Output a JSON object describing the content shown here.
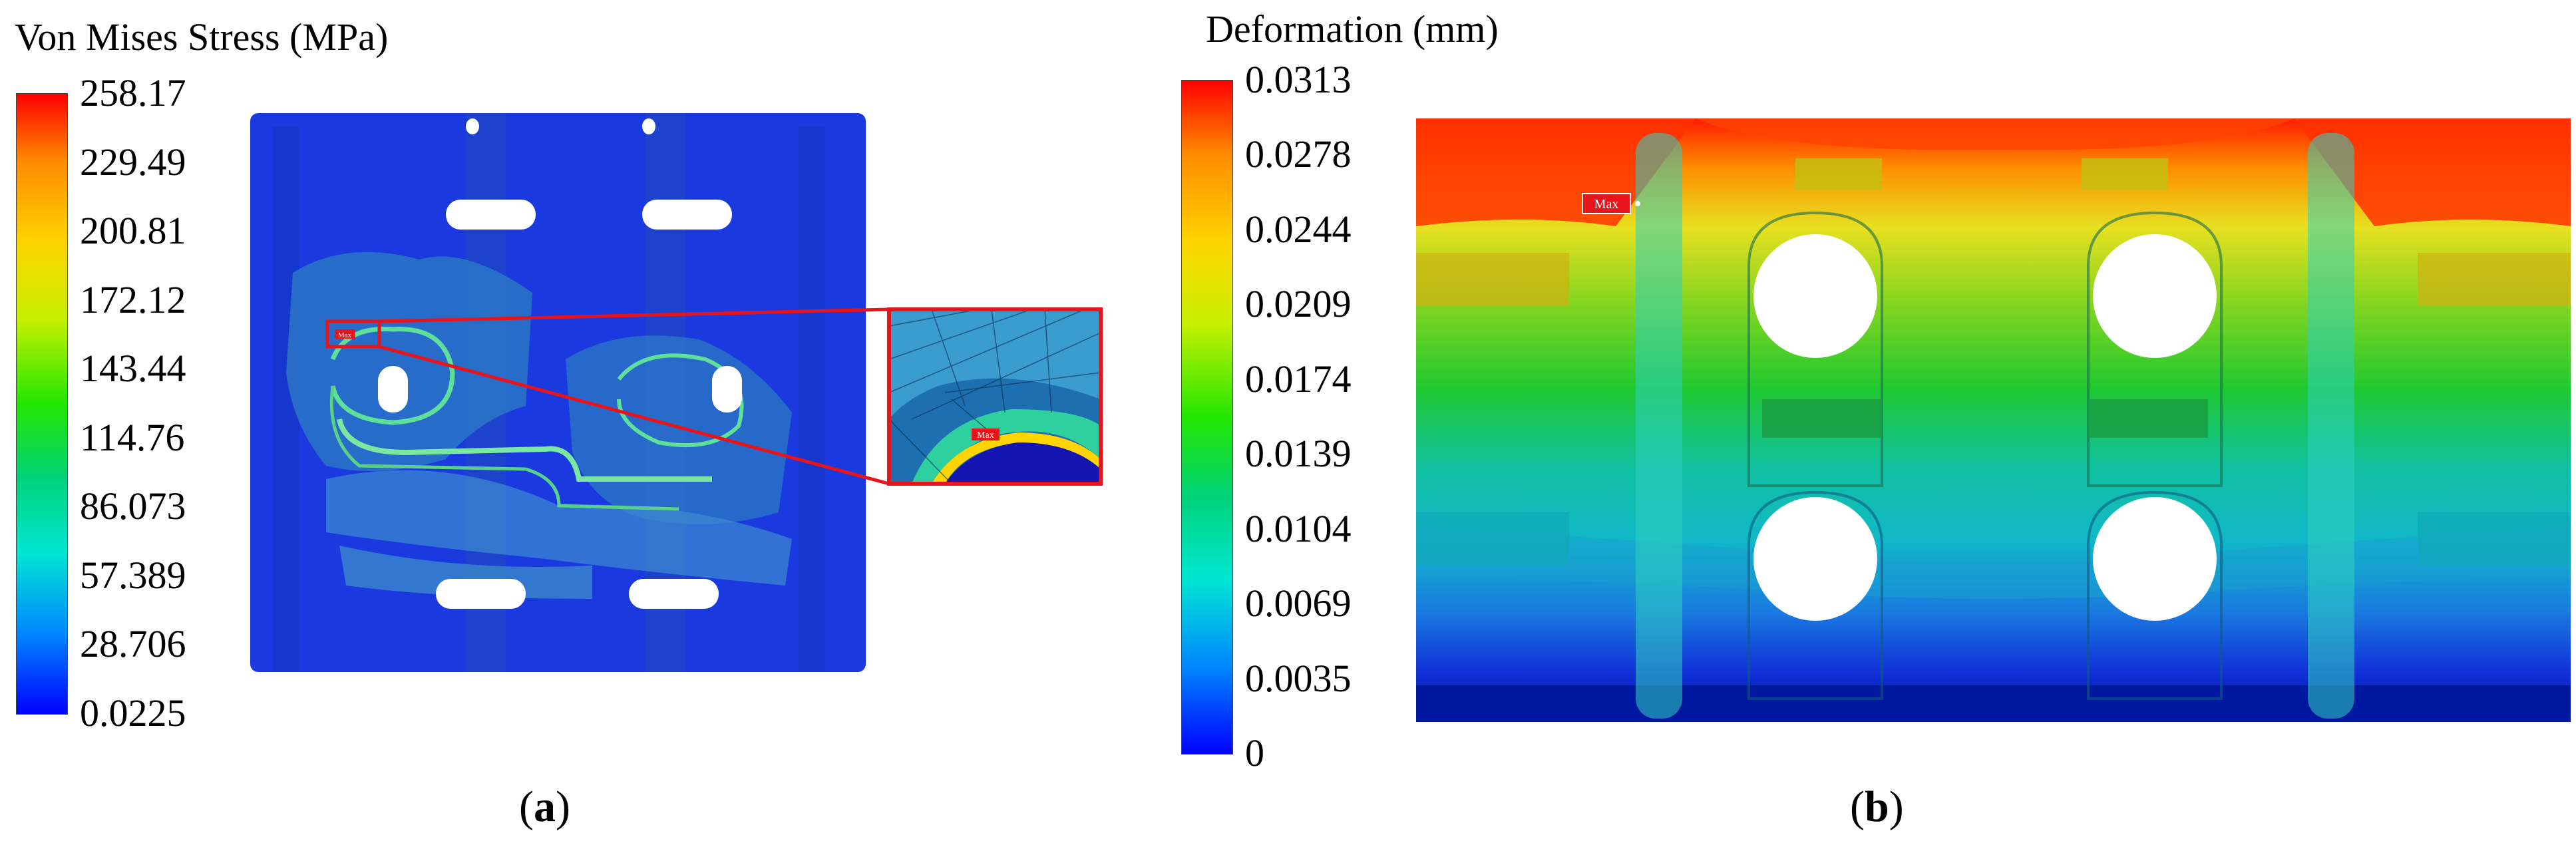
{
  "panel_a": {
    "legend_title": "Von Mises Stress (MPa)",
    "ticks": [
      "258.17",
      "229.49",
      "200.81",
      "172.12",
      "143.44",
      "114.76",
      "86.073",
      "57.389",
      "28.706",
      "0.0225"
    ],
    "max_label": "Max",
    "inset_max_label": "Max",
    "caption_letter": "a"
  },
  "panel_b": {
    "legend_title": "Deformation (mm)",
    "ticks": [
      "0.0313",
      "0.0278",
      "0.0244",
      "0.0209",
      "0.0174",
      "0.0139",
      "0.0104",
      "0.0069",
      "0.0035",
      "0"
    ],
    "max_label": "Max",
    "caption_letter": "b"
  },
  "colors": {
    "highlight": "#e8141b",
    "bar_top": "#ff0000",
    "bar_bottom": "#0000ff"
  }
}
